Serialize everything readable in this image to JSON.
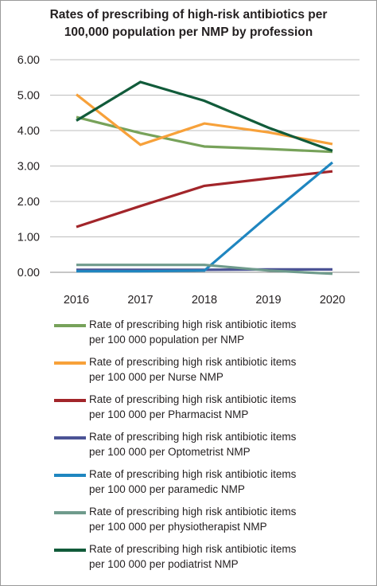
{
  "chart_data": {
    "type": "line",
    "title_lines": [
      "Rates of prescribing of high-risk antibiotics per",
      "100,000 population per NMP by profession"
    ],
    "categories": [
      "2016",
      "2017",
      "2018",
      "2019",
      "2020"
    ],
    "ylim": [
      0,
      6
    ],
    "y_ticks": [
      "0.00",
      "1.00",
      "2.00",
      "3.00",
      "4.00",
      "5.00",
      "6.00"
    ],
    "grid": true,
    "legend_position": "bottom",
    "series": [
      {
        "name": "Rate of prescribing high risk antibiotic items\nper 100 000 population per NMP",
        "color": "#77a25a",
        "values": [
          4.38,
          3.93,
          3.55,
          3.48,
          3.4
        ]
      },
      {
        "name": "Rate of prescribing high risk antibiotic items\nper 100 000 per Nurse NMP",
        "color": "#f7a13a",
        "values": [
          5.02,
          3.6,
          4.2,
          3.95,
          3.62
        ]
      },
      {
        "name": "Rate of prescribing high risk antibiotic items\n per 100 000 per Pharmacist NMP",
        "color": "#a2252a",
        "values": [
          1.28,
          1.87,
          2.44,
          2.65,
          2.85
        ]
      },
      {
        "name": "Rate of prescribing high risk antibiotic items\nper 100 000 per Optometrist NMP",
        "color": "#4b5395",
        "values": [
          0.07,
          0.07,
          0.07,
          0.08,
          0.08
        ]
      },
      {
        "name": "Rate of prescribing high risk antibiotic items\nper 100 000 per paramedic NMP",
        "color": "#1f86c0",
        "values": [
          0.03,
          0.03,
          0.05,
          1.6,
          3.1
        ]
      },
      {
        "name": "Rate of prescribing high risk antibiotic items\nper 100 000 per physiotherapist NMP",
        "color": "#6f9b8c",
        "values": [
          0.21,
          0.21,
          0.21,
          0.05,
          -0.04
        ]
      },
      {
        "name": "Rate of prescribing high risk antibiotic items\nper 100 000 per podiatrist NMP",
        "color": "#115b3a",
        "values": [
          4.28,
          5.37,
          4.84,
          4.08,
          3.43
        ]
      }
    ]
  }
}
